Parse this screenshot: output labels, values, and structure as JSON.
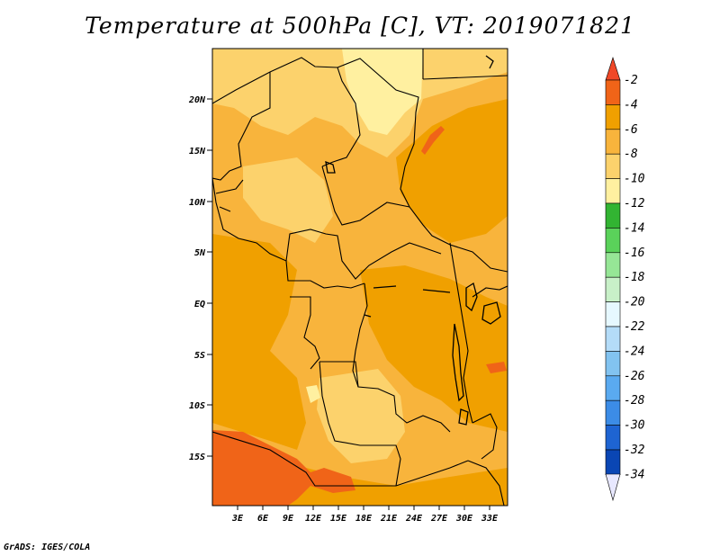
{
  "title": "Temperature at 500hPa [C], VT: 2019071821",
  "footer": "GrADS: IGES/COLA",
  "map": {
    "lat_labels": [
      "20N",
      "15N",
      "10N",
      "5N",
      "EQ",
      "5S",
      "10S",
      "15S"
    ],
    "lon_labels": [
      "3E",
      "6E",
      "9E",
      "12E",
      "15E",
      "18E",
      "21E",
      "24E",
      "27E",
      "30E",
      "33E"
    ]
  },
  "colorbar": {
    "labels": [
      "-2",
      "-4",
      "-6",
      "-8",
      "-10",
      "-12",
      "-14",
      "-16",
      "-18",
      "-20",
      "-22",
      "-24",
      "-26",
      "-28",
      "-30",
      "-32",
      "-34"
    ],
    "colors": {
      "top_arrow": "#f04828",
      "bottom_arrow": "#e8e8ff",
      "bins": [
        "#f06418",
        "#f0a000",
        "#f8b43c",
        "#fcd26c",
        "#fff0a0",
        "#32b432",
        "#5ad25a",
        "#96e696",
        "#c8f0c8",
        "#e6f8ff",
        "#b4dcf8",
        "#82c3f0",
        "#5aaaf0",
        "#3c8ce6",
        "#1e64d2",
        "#0a46b4",
        "#000078"
      ]
    }
  },
  "colors": {
    "land_base": "#f8b43c",
    "warm": "#f0a000",
    "warmer": "#f06418",
    "cool": "#fcd26c",
    "coolest": "#fff0a0",
    "border": "#000000"
  }
}
